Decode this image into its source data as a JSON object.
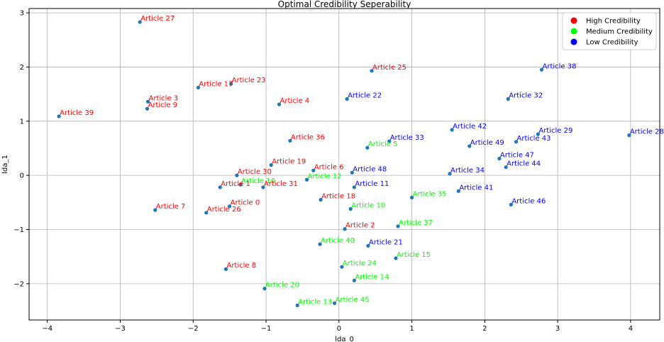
{
  "chart_data": {
    "type": "scatter",
    "title": "Optimal Credibility Seperability",
    "xlabel": "lda_0",
    "ylabel": "lda_1",
    "xlim": [
      -4.25,
      4.4
    ],
    "ylim": [
      -2.67,
      3.08
    ],
    "xticks": [
      -4,
      -3,
      -2,
      -1,
      0,
      1,
      2,
      3,
      4
    ],
    "yticks": [
      -2,
      -1,
      0,
      1,
      2,
      3
    ],
    "tick_labels_x": [
      "−4",
      "−3",
      "−2",
      "−1",
      "0",
      "1",
      "2",
      "3",
      "4"
    ],
    "tick_labels_y": [
      "−2",
      "−1",
      "0",
      "1",
      "2",
      "3"
    ],
    "grid": true,
    "legend_position": "top-right",
    "marker_color": "#1f77b4",
    "legend": [
      {
        "label": "High Credibility",
        "color": "#ff0000"
      },
      {
        "label": "Medium Credibility",
        "color": "#00ff00"
      },
      {
        "label": "Low Credibility",
        "color": "#0000ff"
      }
    ],
    "points": [
      {
        "label": "Article 27",
        "x": -2.73,
        "y": 2.83,
        "class": "high"
      },
      {
        "label": "Article 25",
        "x": 0.45,
        "y": 1.93,
        "class": "high"
      },
      {
        "label": "Article 38",
        "x": 2.78,
        "y": 1.95,
        "class": "low"
      },
      {
        "label": "Article 23",
        "x": -1.48,
        "y": 1.69,
        "class": "high"
      },
      {
        "label": "Article 17",
        "x": -1.93,
        "y": 1.62,
        "class": "high"
      },
      {
        "label": "Article 22",
        "x": 0.11,
        "y": 1.41,
        "class": "low"
      },
      {
        "label": "Article 32",
        "x": 2.32,
        "y": 1.41,
        "class": "low"
      },
      {
        "label": "Article 3",
        "x": -2.62,
        "y": 1.36,
        "class": "high"
      },
      {
        "label": "Article 4",
        "x": -0.82,
        "y": 1.31,
        "class": "high"
      },
      {
        "label": "Article 9",
        "x": -2.63,
        "y": 1.23,
        "class": "high"
      },
      {
        "label": "Article 39",
        "x": -3.84,
        "y": 1.09,
        "class": "high"
      },
      {
        "label": "Article 42",
        "x": 1.55,
        "y": 0.84,
        "class": "low"
      },
      {
        "label": "Article 29",
        "x": 2.73,
        "y": 0.76,
        "class": "low"
      },
      {
        "label": "Article 28",
        "x": 3.98,
        "y": 0.74,
        "class": "low"
      },
      {
        "label": "Article 36",
        "x": -0.67,
        "y": 0.64,
        "class": "high"
      },
      {
        "label": "Article 33",
        "x": 0.69,
        "y": 0.63,
        "class": "low"
      },
      {
        "label": "Article 43",
        "x": 2.43,
        "y": 0.62,
        "class": "low"
      },
      {
        "label": "Article 49",
        "x": 1.79,
        "y": 0.54,
        "class": "low"
      },
      {
        "label": "Article 5",
        "x": 0.39,
        "y": 0.51,
        "class": "medium"
      },
      {
        "label": "Article 47",
        "x": 2.2,
        "y": 0.31,
        "class": "low"
      },
      {
        "label": "Article 19",
        "x": -0.93,
        "y": 0.19,
        "class": "high"
      },
      {
        "label": "Article 44",
        "x": 2.29,
        "y": 0.15,
        "class": "low"
      },
      {
        "label": "Article 6",
        "x": -0.35,
        "y": 0.09,
        "class": "high"
      },
      {
        "label": "Article 48",
        "x": 0.18,
        "y": 0.05,
        "class": "low"
      },
      {
        "label": "Article 34",
        "x": 1.52,
        "y": 0.03,
        "class": "low"
      },
      {
        "label": "Article 30",
        "x": -1.4,
        "y": 0.0,
        "class": "high"
      },
      {
        "label": "Article 12",
        "x": -0.44,
        "y": -0.08,
        "class": "medium"
      },
      {
        "label": "Article 16",
        "x": -1.35,
        "y": -0.17,
        "class": "medium"
      },
      {
        "label": "Article 1",
        "x": -1.63,
        "y": -0.22,
        "class": "high"
      },
      {
        "label": "Article 31",
        "x": -1.04,
        "y": -0.22,
        "class": "high"
      },
      {
        "label": "Article 11",
        "x": 0.21,
        "y": -0.22,
        "class": "low"
      },
      {
        "label": "Article 41",
        "x": 1.64,
        "y": -0.29,
        "class": "low"
      },
      {
        "label": "Article 35",
        "x": 1.0,
        "y": -0.41,
        "class": "medium"
      },
      {
        "label": "Article 18",
        "x": -0.25,
        "y": -0.45,
        "class": "high"
      },
      {
        "label": "Article 46",
        "x": 2.36,
        "y": -0.54,
        "class": "low"
      },
      {
        "label": "Article 0",
        "x": -1.5,
        "y": -0.57,
        "class": "high"
      },
      {
        "label": "Article 10",
        "x": 0.16,
        "y": -0.62,
        "class": "medium"
      },
      {
        "label": "Article 7",
        "x": -2.52,
        "y": -0.64,
        "class": "high"
      },
      {
        "label": "Article 26",
        "x": -1.82,
        "y": -0.69,
        "class": "high"
      },
      {
        "label": "Article 37",
        "x": 0.81,
        "y": -0.94,
        "class": "medium"
      },
      {
        "label": "Article 2",
        "x": 0.08,
        "y": -0.99,
        "class": "high"
      },
      {
        "label": "Article 40",
        "x": -0.26,
        "y": -1.27,
        "class": "medium"
      },
      {
        "label": "Article 21",
        "x": 0.4,
        "y": -1.3,
        "class": "low"
      },
      {
        "label": "Article 15",
        "x": 0.78,
        "y": -1.53,
        "class": "medium"
      },
      {
        "label": "Article 24",
        "x": 0.04,
        "y": -1.69,
        "class": "medium"
      },
      {
        "label": "Article 8",
        "x": -1.55,
        "y": -1.73,
        "class": "high"
      },
      {
        "label": "Article 14",
        "x": 0.21,
        "y": -1.94,
        "class": "medium"
      },
      {
        "label": "Article 20",
        "x": -1.02,
        "y": -2.09,
        "class": "medium"
      },
      {
        "label": "Article 45",
        "x": -0.06,
        "y": -2.36,
        "class": "medium"
      },
      {
        "label": "Article 13",
        "x": -0.57,
        "y": -2.4,
        "class": "medium"
      }
    ],
    "class_colors": {
      "high": "#ff0000",
      "medium": "#00ff00",
      "low": "#0000ff"
    }
  }
}
